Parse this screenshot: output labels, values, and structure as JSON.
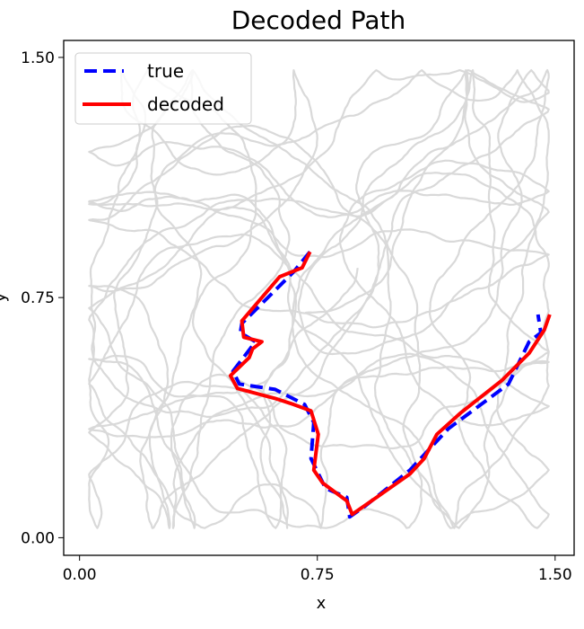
{
  "chart_data": {
    "type": "line",
    "title": "Decoded Path",
    "xlabel": "x",
    "ylabel": "y",
    "xlim": [
      -0.05,
      1.56
    ],
    "ylim": [
      -0.055,
      1.553
    ],
    "xticks": [
      0.0,
      0.75,
      1.5
    ],
    "xtick_labels": [
      "0.00",
      "0.75",
      "1.50"
    ],
    "yticks": [
      0.0,
      0.75,
      1.5
    ],
    "ytick_labels": [
      "0.00",
      "0.75",
      "1.50"
    ],
    "grid": false,
    "legend_placement": "top-left",
    "background_trajectory": {
      "color": "#808080",
      "opacity": 0.3,
      "description_in_legend": false
    },
    "series": [
      {
        "name": "true",
        "style": "dashed",
        "color": "#0000ff",
        "x": [
          0.727,
          0.674,
          0.512,
          0.507,
          0.555,
          0.484,
          0.504,
          0.617,
          0.71,
          0.739,
          0.73,
          0.776,
          0.843,
          0.852,
          0.9,
          1.042,
          1.163,
          1.353,
          1.418,
          1.455,
          1.446
        ],
        "y": [
          0.893,
          0.829,
          0.669,
          0.64,
          0.612,
          0.52,
          0.48,
          0.463,
          0.416,
          0.36,
          0.247,
          0.154,
          0.126,
          0.065,
          0.098,
          0.211,
          0.34,
          0.48,
          0.612,
          0.64,
          0.697
        ]
      },
      {
        "name": "decoded",
        "style": "solid",
        "color": "#ff0000",
        "x": [
          0.727,
          0.702,
          0.631,
          0.512,
          0.518,
          0.575,
          0.546,
          0.535,
          0.476,
          0.498,
          0.617,
          0.676,
          0.73,
          0.753,
          0.739,
          0.767,
          0.843,
          0.86,
          0.937,
          1.042,
          1.087,
          1.127,
          1.2,
          1.333,
          1.418,
          1.466,
          1.483
        ],
        "y": [
          0.893,
          0.843,
          0.815,
          0.677,
          0.626,
          0.612,
          0.59,
          0.562,
          0.506,
          0.466,
          0.435,
          0.416,
          0.396,
          0.323,
          0.211,
          0.171,
          0.115,
          0.073,
          0.126,
          0.199,
          0.247,
          0.323,
          0.388,
          0.492,
          0.576,
          0.649,
          0.697
        ]
      }
    ]
  }
}
